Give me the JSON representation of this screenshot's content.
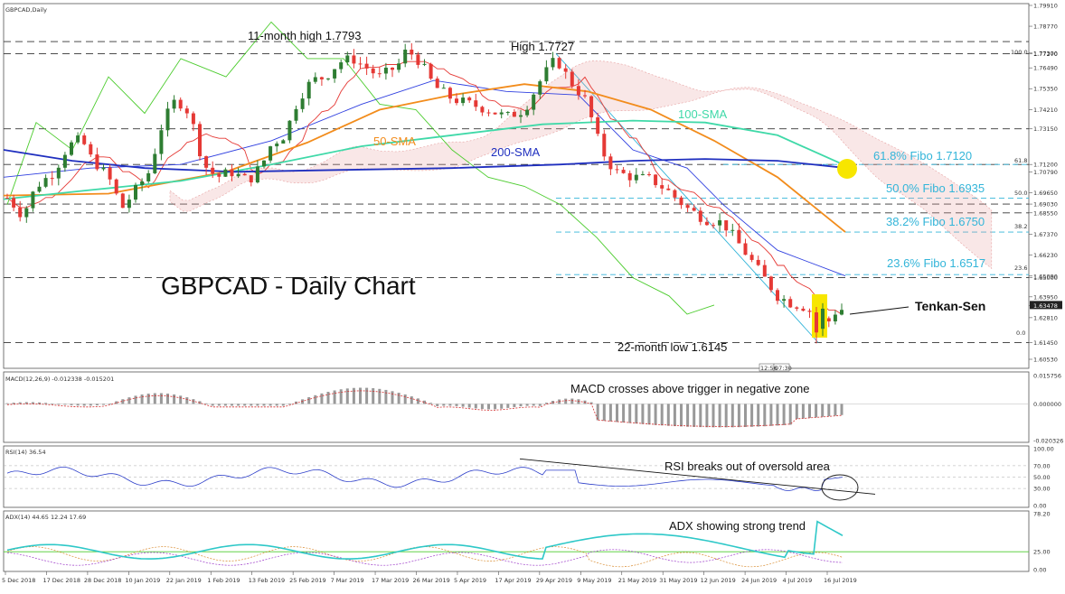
{
  "header": {
    "symbol": "GBPCAD,Daily"
  },
  "chart_data": [
    {
      "type": "candlestick",
      "title": "GBPCAD - Daily Chart",
      "price_axis": [
        "1.79910",
        "1.78770",
        "1.77300",
        "1.77270",
        "1.76490",
        "1.75350",
        "1.74210",
        "1.73150",
        "1.71200",
        "1.70790",
        "1.69650",
        "1.69030",
        "1.68550",
        "1.67370",
        "1.66230",
        "1.65000",
        "1.65090",
        "1.63950",
        "1.63478",
        "1.62810",
        "1.61450",
        "1.60530"
      ],
      "x_dates": [
        "5 Dec 2018",
        "17 Dec 2018",
        "28 Dec 2018",
        "10 Jan 2019",
        "22 Jan 2019",
        "1 Feb 2019",
        "13 Feb 2019",
        "25 Feb 2019",
        "7 Mar 2019",
        "17 Mar 2019",
        "26 Mar 2019",
        "5 Apr 2019",
        "17 Apr 2019",
        "29 Apr 2019",
        "9 May 2019",
        "21 May 2019",
        "31 May 2019",
        "12 Jun 2019",
        "24 Jun 2019",
        "4 Jul 2019",
        "16 Jul 2019"
      ],
      "ylim": [
        1.6053,
        1.7991
      ],
      "horizontal_levels": [
        1.7793,
        1.7727,
        1.7315,
        1.712,
        1.6903,
        1.6855,
        1.65,
        1.6145
      ],
      "fibo_levels": [
        {
          "label": "61.8% Fibo 1.7120",
          "value": 1.712,
          "tag": "61.8"
        },
        {
          "label": "50.0% Fibo 1.6935",
          "value": 1.6935,
          "tag": "50.0"
        },
        {
          "label": "38.2% Fibo 1.6750",
          "value": 1.675,
          "tag": "38.2"
        },
        {
          "label": "23.6% Fibo 1.6517",
          "value": 1.6517,
          "tag": "23.6"
        }
      ],
      "fibo_top_tag": "100.0",
      "fibo_bottom_tag": "0.0",
      "annotations": [
        "11-month high 1.7793",
        "High 1.7727",
        "22-month low 1.6145",
        "Tenkan-Sen"
      ],
      "ma_labels": {
        "sma50": "50-SMA",
        "sma100": "100-SMA",
        "sma200": "200-SMA"
      },
      "current_price": "1.63478",
      "time_box": [
        "12:56",
        "07:30"
      ],
      "colors": {
        "bull": "#2e7d32",
        "bear": "#e53935",
        "sma50": "#f28c1c",
        "sma100": "#3fd9a8",
        "sma200": "#1f2fbf",
        "tenkan": "#e53935",
        "kijun": "#3040e0",
        "chikou": "#4ccc2e",
        "cloud": "#e6a0a0",
        "fibo": "#33b5d9",
        "highlight": "#f7e600"
      }
    },
    {
      "type": "bar",
      "title": "MACD(12,26,9) -0.012338 -0.015201",
      "annotation": "MACD crosses above trigger in negative zone",
      "axis": [
        "0.015756",
        "0.000000",
        "-0.020326"
      ],
      "ylim": [
        -0.020326,
        0.015756
      ]
    },
    {
      "type": "line",
      "title": "RSI(14) 36.54",
      "annotation": "RSI breaks out of oversold area",
      "axis": [
        "100.00",
        "70.00",
        "50.00",
        "30.00",
        "0.00"
      ],
      "ylim": [
        0,
        100
      ]
    },
    {
      "type": "line",
      "title": "ADX(14) 44.65 12.24 17.69",
      "annotation": "ADX showing strong trend",
      "axis": [
        "78.20",
        "25.00",
        "0.00"
      ],
      "ylim": [
        0,
        78.2
      ]
    }
  ]
}
